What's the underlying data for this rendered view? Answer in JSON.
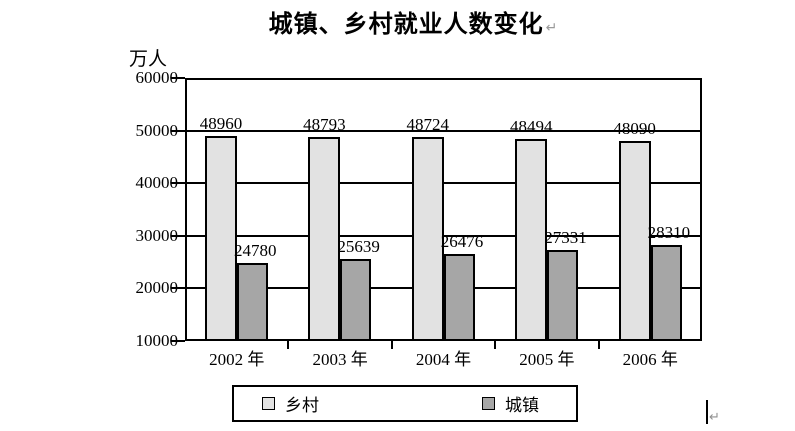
{
  "title": "城镇、乡村就业人数变化",
  "y_unit": "万人",
  "marks": {
    "return_mark": "↵"
  },
  "chart_data": {
    "type": "bar",
    "title": "城镇、乡村就业人数变化",
    "ylabel": "万人",
    "categories": [
      "2002 年",
      "2003 年",
      "2004 年",
      "2005 年",
      "2006 年"
    ],
    "series": [
      {
        "name": "乡村",
        "color": "#e2e2e2",
        "values": [
          48960,
          48793,
          48724,
          48494,
          48090
        ]
      },
      {
        "name": "城镇",
        "color": "#a6a6a6",
        "values": [
          24780,
          25639,
          26476,
          27331,
          28310
        ]
      }
    ],
    "ylim": [
      10000,
      60000
    ],
    "yticks": [
      60000,
      50000,
      40000,
      30000,
      20000,
      10000
    ],
    "grid": true,
    "legend_position": "bottom"
  }
}
